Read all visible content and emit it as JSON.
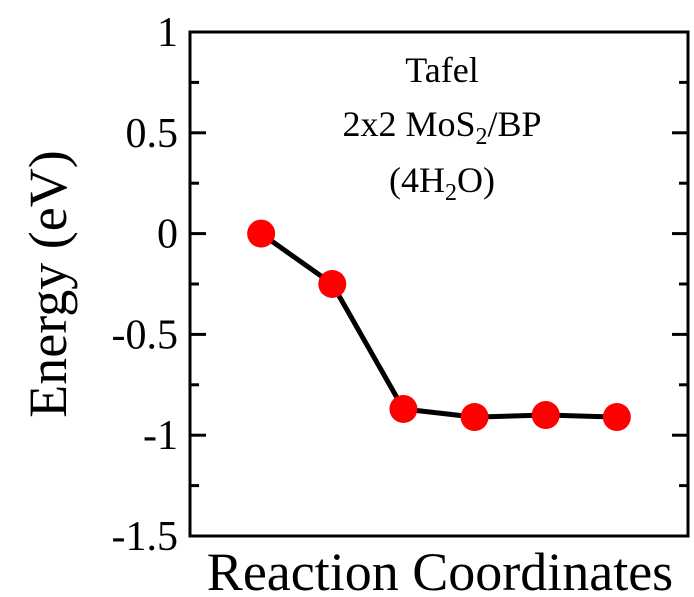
{
  "chart_data": {
    "type": "line",
    "xlabel": "Reaction Coordinates",
    "ylabel": "Energy (eV)",
    "ylim": [
      -1.5,
      1
    ],
    "xlim": [
      0,
      7
    ],
    "y_ticks": [
      1,
      0.5,
      0,
      -0.5,
      -1,
      -1.5
    ],
    "y_tick_labels": [
      "1",
      "0.5",
      "0",
      "-0.5",
      "-1",
      "-1.5"
    ],
    "y_minor_ticks": [
      0.75,
      0.25,
      -0.25,
      -0.75,
      -1.25
    ],
    "x_tick_labels": [],
    "annotation": {
      "line1": "Tafel",
      "line2_main": "2x2 MoS",
      "line2_sub": "2",
      "line2_tail": "/BP",
      "line3_main": "(4H",
      "line3_sub": "2",
      "line3_tail": "O)"
    },
    "series": [
      {
        "x": [
          1,
          2,
          3,
          4,
          5,
          6
        ],
        "y": [
          0.0,
          -0.25,
          -0.87,
          -0.91,
          -0.9,
          -0.91
        ],
        "line_color": "#000000",
        "marker_color": "#ff0000"
      }
    ],
    "grid": false,
    "legend": "none"
  }
}
